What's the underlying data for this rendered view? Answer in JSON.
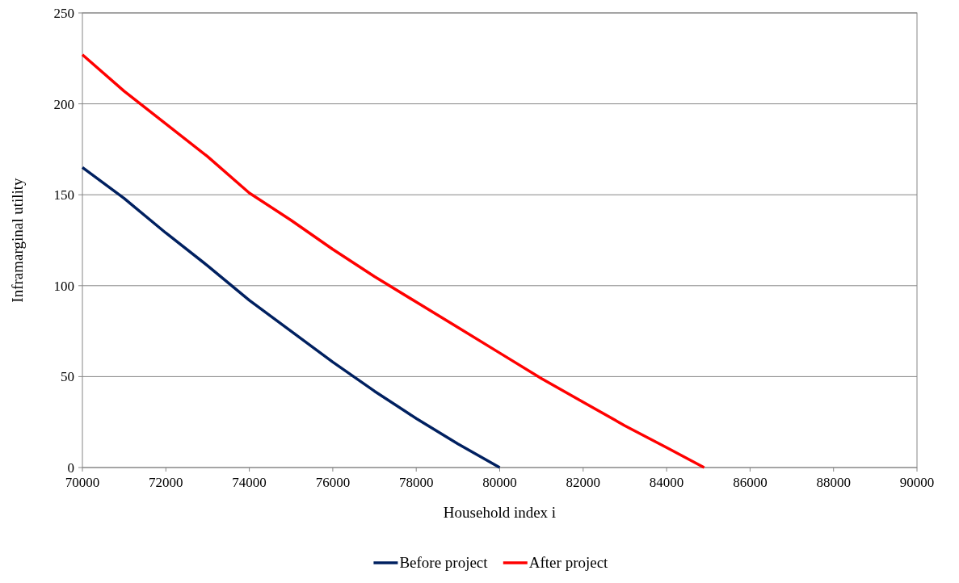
{
  "chart_data": {
    "type": "line",
    "xlabel": "Household index i",
    "ylabel": "Inframarginal utility",
    "xlim": [
      70000,
      90000
    ],
    "xticks": [
      70000,
      72000,
      74000,
      76000,
      78000,
      80000,
      82000,
      84000,
      86000,
      88000,
      90000
    ],
    "ylim": [
      0,
      250
    ],
    "yticks": [
      0,
      50,
      100,
      150,
      200,
      250
    ],
    "grid": "y",
    "legend": "bottom",
    "marker": "none",
    "line_style": "solid",
    "series": [
      {
        "name": "Before project",
        "color": "#002060",
        "x": [
          70000,
          71000,
          72000,
          73000,
          74000,
          75000,
          76000,
          77000,
          78000,
          79000,
          80000
        ],
        "values": [
          165,
          148,
          129,
          111,
          92,
          75,
          58,
          42,
          27,
          13,
          0
        ]
      },
      {
        "name": "After project",
        "color": "#ff0000",
        "x": [
          70000,
          71000,
          72000,
          73000,
          74000,
          75000,
          76000,
          77000,
          78000,
          79000,
          80000,
          81000,
          82000,
          83000,
          84000,
          84900
        ],
        "values": [
          227,
          207,
          189,
          171,
          151,
          136,
          120,
          105,
          91,
          77,
          63,
          49,
          36,
          23,
          11,
          0
        ]
      }
    ]
  }
}
